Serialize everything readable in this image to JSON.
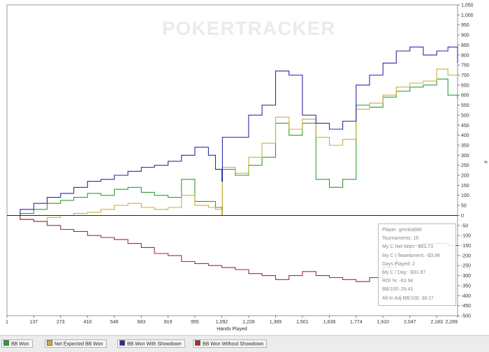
{
  "watermark": "POKERTRACKER",
  "stats": [
    "Player: grenka666",
    "Tournaments: 16",
    "My C Net Won: -$63.73",
    "My C / Tournament: -$3.98",
    "Days Played: 2",
    "My C / Day: -$31.87",
    "ROI %: -63.94",
    "BB/100: 29.41",
    "All-In Adj BB/100: 38.17"
  ],
  "legend": [
    {
      "label": "BB Won",
      "color": "#2e9e2e"
    },
    {
      "label": "Net Expected BB Won",
      "color": "#c8b040"
    },
    {
      "label": "BB Won With Showdown",
      "color": "#2a2aa8"
    },
    {
      "label": "BB Won Without Showdown",
      "color": "#a82a2a"
    }
  ],
  "chart_data": {
    "type": "line",
    "xlabel": "Hands Played",
    "ylabel": "#",
    "xlim": [
      1,
      2289
    ],
    "ylim": [
      -500,
      1050
    ],
    "x_ticks": [
      1,
      137,
      273,
      410,
      546,
      683,
      819,
      955,
      1092,
      1228,
      1365,
      1501,
      1638,
      1774,
      1910,
      2047,
      2183,
      2289
    ],
    "y_ticks": [
      1050,
      1000,
      950,
      900,
      850,
      800,
      750,
      700,
      650,
      600,
      550,
      500,
      450,
      400,
      350,
      300,
      250,
      200,
      150,
      100,
      50,
      0,
      -50,
      -100,
      -150,
      -200,
      -250,
      -300,
      -350,
      -400,
      -450,
      -500
    ],
    "grid": false,
    "legend_position": "bottom",
    "series": [
      {
        "name": "BB Won",
        "color": "#2e9e2e",
        "x": [
          1,
          68,
          137,
          205,
          273,
          340,
          410,
          478,
          546,
          615,
          683,
          750,
          819,
          887,
          955,
          1024,
          1060,
          1092,
          1095,
          1160,
          1228,
          1296,
          1365,
          1433,
          1501,
          1570,
          1638,
          1706,
          1774,
          1842,
          1910,
          1978,
          2047,
          2115,
          2183,
          2240,
          2289
        ],
        "y": [
          0,
          10,
          30,
          60,
          75,
          90,
          110,
          100,
          130,
          140,
          115,
          100,
          90,
          180,
          70,
          70,
          40,
          10,
          230,
          200,
          250,
          290,
          460,
          400,
          460,
          180,
          140,
          180,
          550,
          540,
          590,
          620,
          640,
          650,
          680,
          600,
          580
        ]
      },
      {
        "name": "Net Expected BB Won",
        "color": "#c8b040",
        "x": [
          1,
          68,
          137,
          205,
          273,
          340,
          410,
          478,
          546,
          615,
          683,
          750,
          819,
          887,
          955,
          1024,
          1060,
          1092,
          1095,
          1160,
          1228,
          1296,
          1365,
          1433,
          1501,
          1570,
          1638,
          1706,
          1774,
          1842,
          1910,
          1978,
          2047,
          2115,
          2183,
          2240,
          2289
        ],
        "y": [
          0,
          -20,
          -30,
          -10,
          0,
          10,
          15,
          30,
          50,
          60,
          40,
          30,
          40,
          100,
          50,
          40,
          30,
          0,
          240,
          210,
          290,
          360,
          490,
          430,
          480,
          390,
          350,
          380,
          530,
          560,
          600,
          640,
          660,
          670,
          730,
          700,
          690
        ]
      },
      {
        "name": "BB Won With Showdown",
        "color": "#2a2aa8",
        "x": [
          1,
          68,
          137,
          205,
          273,
          340,
          410,
          478,
          546,
          615,
          683,
          750,
          819,
          887,
          955,
          1024,
          1060,
          1092,
          1095,
          1160,
          1228,
          1296,
          1365,
          1433,
          1501,
          1570,
          1638,
          1706,
          1774,
          1842,
          1910,
          1978,
          2047,
          2115,
          2183,
          2240,
          2289
        ],
        "y": [
          0,
          30,
          60,
          90,
          110,
          140,
          170,
          180,
          200,
          220,
          240,
          250,
          270,
          300,
          340,
          300,
          230,
          170,
          390,
          390,
          500,
          550,
          720,
          700,
          500,
          460,
          430,
          470,
          650,
          700,
          760,
          820,
          840,
          800,
          820,
          840,
          760
        ]
      },
      {
        "name": "BB Won Without Showdown",
        "color": "#a82a2a",
        "x": [
          1,
          68,
          137,
          205,
          273,
          340,
          410,
          478,
          546,
          615,
          683,
          750,
          819,
          887,
          955,
          1024,
          1092,
          1160,
          1228,
          1296,
          1365,
          1433,
          1501,
          1570,
          1638,
          1706,
          1774,
          1842,
          1910,
          1978,
          2047,
          2115,
          2183,
          2240,
          2289
        ],
        "y": [
          0,
          -20,
          -30,
          -50,
          -70,
          -80,
          -100,
          -110,
          -120,
          -140,
          -160,
          -190,
          -200,
          -230,
          -240,
          -250,
          -260,
          -270,
          -290,
          -300,
          -320,
          -300,
          -280,
          -300,
          -310,
          -320,
          -330,
          -310,
          -260,
          -200,
          -150,
          -140,
          -140,
          -150,
          -150
        ]
      }
    ]
  }
}
